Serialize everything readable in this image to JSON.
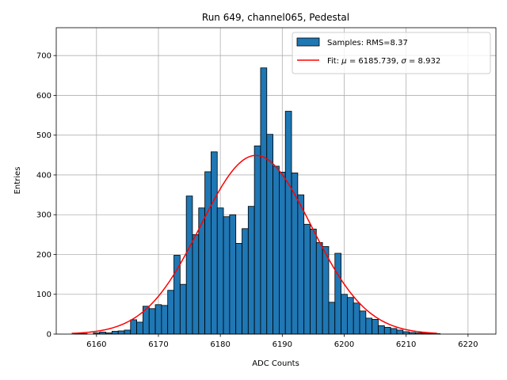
{
  "chart_data": {
    "type": "histogram",
    "title": "Run 649, channel065, Pedestal",
    "xlabel": "ADC Counts",
    "ylabel": "Entries",
    "xlim": [
      6153.5,
      6224.5
    ],
    "ylim": [
      0,
      770
    ],
    "xticks": [
      6160,
      6170,
      6180,
      6190,
      6200,
      6210,
      6220
    ],
    "yticks": [
      0,
      100,
      200,
      300,
      400,
      500,
      600,
      700
    ],
    "grid": true,
    "legend_position": "top-right",
    "bin_width": 1,
    "bins": [
      {
        "x": 6157,
        "value": 1
      },
      {
        "x": 6158,
        "value": 1
      },
      {
        "x": 6159,
        "value": 0
      },
      {
        "x": 6160,
        "value": 3
      },
      {
        "x": 6161,
        "value": 5
      },
      {
        "x": 6162,
        "value": 3
      },
      {
        "x": 6163,
        "value": 7
      },
      {
        "x": 6164,
        "value": 8
      },
      {
        "x": 6165,
        "value": 10
      },
      {
        "x": 6166,
        "value": 36
      },
      {
        "x": 6167,
        "value": 30
      },
      {
        "x": 6168,
        "value": 70
      },
      {
        "x": 6169,
        "value": 64
      },
      {
        "x": 6170,
        "value": 74
      },
      {
        "x": 6171,
        "value": 72
      },
      {
        "x": 6172,
        "value": 110
      },
      {
        "x": 6173,
        "value": 198
      },
      {
        "x": 6174,
        "value": 125
      },
      {
        "x": 6175,
        "value": 347
      },
      {
        "x": 6176,
        "value": 250
      },
      {
        "x": 6177,
        "value": 317
      },
      {
        "x": 6178,
        "value": 408
      },
      {
        "x": 6179,
        "value": 458
      },
      {
        "x": 6180,
        "value": 317
      },
      {
        "x": 6181,
        "value": 295
      },
      {
        "x": 6182,
        "value": 300
      },
      {
        "x": 6183,
        "value": 228
      },
      {
        "x": 6184,
        "value": 265
      },
      {
        "x": 6185,
        "value": 321
      },
      {
        "x": 6186,
        "value": 473
      },
      {
        "x": 6187,
        "value": 669
      },
      {
        "x": 6188,
        "value": 502
      },
      {
        "x": 6189,
        "value": 422
      },
      {
        "x": 6190,
        "value": 407
      },
      {
        "x": 6191,
        "value": 560
      },
      {
        "x": 6192,
        "value": 405
      },
      {
        "x": 6193,
        "value": 350
      },
      {
        "x": 6194,
        "value": 276
      },
      {
        "x": 6195,
        "value": 264
      },
      {
        "x": 6196,
        "value": 230
      },
      {
        "x": 6197,
        "value": 220
      },
      {
        "x": 6198,
        "value": 80
      },
      {
        "x": 6199,
        "value": 203
      },
      {
        "x": 6200,
        "value": 100
      },
      {
        "x": 6201,
        "value": 92
      },
      {
        "x": 6202,
        "value": 78
      },
      {
        "x": 6203,
        "value": 58
      },
      {
        "x": 6204,
        "value": 40
      },
      {
        "x": 6205,
        "value": 37
      },
      {
        "x": 6206,
        "value": 21
      },
      {
        "x": 6207,
        "value": 17
      },
      {
        "x": 6208,
        "value": 14
      },
      {
        "x": 6209,
        "value": 10
      },
      {
        "x": 6210,
        "value": 6
      },
      {
        "x": 6211,
        "value": 4
      },
      {
        "x": 6212,
        "value": 3
      },
      {
        "x": 6213,
        "value": 2
      },
      {
        "x": 6214,
        "value": 1
      },
      {
        "x": 6215,
        "value": 1
      }
    ],
    "fit": {
      "mu": 6185.739,
      "sigma": 8.932,
      "amplitude": 449,
      "x_range": [
        6156,
        6215
      ]
    },
    "series": [
      {
        "name": "Samples: RMS=8.37",
        "type": "histogram",
        "color": "#1f77b4"
      },
      {
        "name": "Fit: μ = 6185.739, σ = 8.932",
        "type": "line",
        "color": "#ff0000"
      }
    ],
    "legend": {
      "samples_prefix": "Samples: RMS=8.37",
      "fit_prefix": "Fit: ",
      "fit_mu_symbol": "μ",
      "fit_mu_value": " = 6185.739, ",
      "fit_sigma_symbol": "σ",
      "fit_sigma_value": " = 8.932"
    },
    "colors": {
      "bar_fill": "#1f77b4",
      "bar_edge": "#000000",
      "fit_line": "#ff0000",
      "grid": "#b0b0b0"
    }
  }
}
